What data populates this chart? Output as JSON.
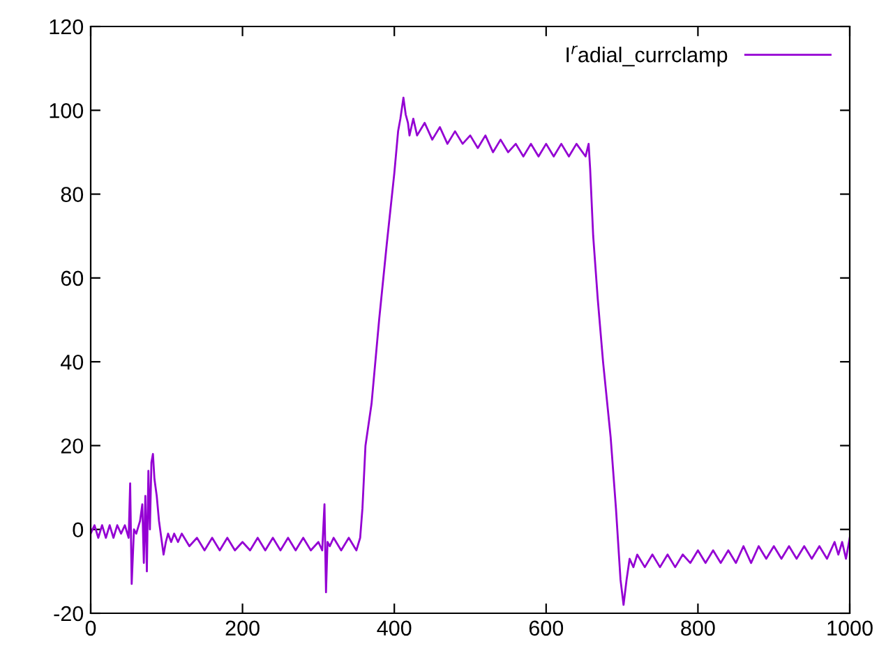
{
  "chart_data": {
    "type": "line",
    "legend": "top right",
    "xlim": [
      0,
      1000
    ],
    "ylim": [
      -20,
      120
    ],
    "xticks": [
      0,
      200,
      400,
      600,
      800,
      1000
    ],
    "yticks": [
      -20,
      0,
      20,
      40,
      60,
      80,
      100,
      120
    ],
    "grid": false,
    "marker": "none",
    "line_style": "solid",
    "series": [
      {
        "name": "I$^{r}$adial_currclamp",
        "color": "#9400d3",
        "x": [
          0,
          5,
          10,
          15,
          20,
          25,
          30,
          35,
          40,
          45,
          50,
          52,
          54,
          57,
          60,
          65,
          68,
          70,
          72,
          74,
          76,
          78,
          80,
          82,
          84,
          87,
          90,
          93,
          96,
          99,
          102,
          106,
          110,
          115,
          120,
          130,
          140,
          150,
          160,
          170,
          180,
          190,
          200,
          210,
          220,
          230,
          240,
          250,
          260,
          270,
          280,
          290,
          300,
          305,
          308,
          310,
          312,
          315,
          320,
          330,
          340,
          350,
          355,
          358,
          362,
          370,
          380,
          390,
          400,
          405,
          408,
          412,
          415,
          418,
          420,
          425,
          430,
          440,
          450,
          460,
          470,
          480,
          490,
          500,
          510,
          520,
          530,
          540,
          550,
          560,
          570,
          580,
          590,
          600,
          610,
          620,
          630,
          640,
          652,
          656,
          658,
          662,
          668,
          675,
          685,
          692,
          698,
          702,
          706,
          710,
          715,
          720,
          730,
          740,
          750,
          760,
          770,
          780,
          790,
          800,
          810,
          820,
          830,
          840,
          850,
          860,
          870,
          880,
          890,
          900,
          910,
          920,
          930,
          940,
          950,
          960,
          970,
          980,
          985,
          990,
          995,
          1000
        ],
        "values": [
          -1,
          1,
          -2,
          1,
          -2,
          1,
          -2,
          1,
          -1,
          1,
          -2,
          11,
          -13,
          0,
          -1,
          2,
          6,
          -8,
          8,
          -10,
          14,
          0,
          16,
          18,
          12,
          8,
          2,
          -2,
          -6,
          -3,
          -1,
          -3,
          -1,
          -3,
          -1,
          -4,
          -2,
          -5,
          -2,
          -5,
          -2,
          -5,
          -3,
          -5,
          -2,
          -5,
          -2,
          -5,
          -2,
          -5,
          -2,
          -5,
          -3,
          -5,
          6,
          -15,
          -3,
          -4,
          -2,
          -5,
          -2,
          -5,
          -2,
          5,
          20,
          30,
          50,
          68,
          85,
          95,
          98,
          103,
          99,
          97,
          94,
          98,
          94,
          97,
          93,
          96,
          92,
          95,
          92,
          94,
          91,
          94,
          90,
          93,
          90,
          92,
          89,
          92,
          89,
          92,
          89,
          92,
          89,
          92,
          89,
          92,
          86,
          70,
          55,
          40,
          22,
          5,
          -12,
          -18,
          -12,
          -7,
          -9,
          -6,
          -9,
          -6,
          -9,
          -6,
          -9,
          -6,
          -8,
          -5,
          -8,
          -5,
          -8,
          -5,
          -8,
          -4,
          -8,
          -4,
          -7,
          -4,
          -7,
          -4,
          -7,
          -4,
          -7,
          -4,
          -7,
          -3,
          -6,
          -3,
          -7,
          -2
        ]
      }
    ]
  }
}
